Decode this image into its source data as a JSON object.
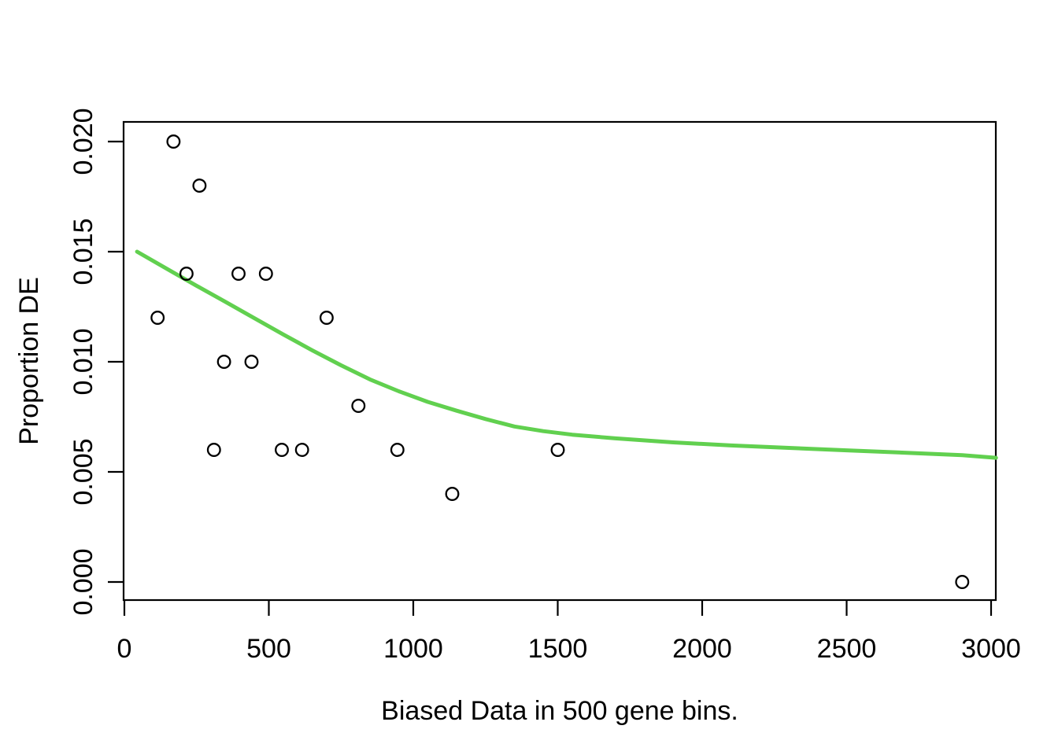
{
  "figure": {
    "background_color": "#ffffff",
    "axis_color": "#000000"
  },
  "chart_data": {
    "type": "scatter",
    "title": "",
    "xlabel": "Biased Data in 500 gene bins.",
    "ylabel": "Proportion DE",
    "xlim": [
      0,
      3000
    ],
    "ylim": [
      0,
      0.02
    ],
    "grid": false,
    "legend": "none",
    "x_tick_values": [
      0,
      500,
      1000,
      1500,
      2000,
      2500,
      3000
    ],
    "x_tick_labels": [
      "0",
      "500",
      "1000",
      "1500",
      "2000",
      "2500",
      "3000"
    ],
    "y_tick_values": [
      0,
      0.005,
      0.01,
      0.015,
      0.02
    ],
    "y_tick_labels": [
      "0.000",
      "0.005",
      "0.010",
      "0.015",
      "0.020"
    ],
    "series": [
      {
        "name": "binned-proportion-DE",
        "marker": "open-circle",
        "color": "#000000",
        "points": [
          [
            115,
            0.012
          ],
          [
            170,
            0.02
          ],
          [
            215,
            0.014
          ],
          [
            260,
            0.018
          ],
          [
            310,
            0.006
          ],
          [
            345,
            0.01
          ],
          [
            395,
            0.014
          ],
          [
            440,
            0.01
          ],
          [
            490,
            0.014
          ],
          [
            545,
            0.006
          ],
          [
            615,
            0.006
          ],
          [
            700,
            0.012
          ],
          [
            810,
            0.008
          ],
          [
            945,
            0.006
          ],
          [
            1135,
            0.004
          ],
          [
            1500,
            0.006
          ],
          [
            2900,
            0.0
          ]
        ]
      }
    ],
    "trend": {
      "name": "pwf-spline-fit",
      "color": "#61D04F",
      "points": [
        [
          44,
          0.015
        ],
        [
          150,
          0.0142
        ],
        [
          250,
          0.01345
        ],
        [
          350,
          0.01272
        ],
        [
          450,
          0.01198
        ],
        [
          550,
          0.01124
        ],
        [
          650,
          0.01052
        ],
        [
          750,
          0.00984
        ],
        [
          850,
          0.0092
        ],
        [
          950,
          0.00866
        ],
        [
          1050,
          0.00818
        ],
        [
          1150,
          0.00778
        ],
        [
          1250,
          0.0074
        ],
        [
          1350,
          0.00706
        ],
        [
          1450,
          0.00685
        ],
        [
          1550,
          0.00669
        ],
        [
          1700,
          0.00652
        ],
        [
          1900,
          0.00634
        ],
        [
          2100,
          0.0062
        ],
        [
          2300,
          0.00609
        ],
        [
          2500,
          0.00598
        ],
        [
          2700,
          0.00587
        ],
        [
          2900,
          0.00576
        ],
        [
          3017,
          0.00564
        ]
      ]
    }
  }
}
